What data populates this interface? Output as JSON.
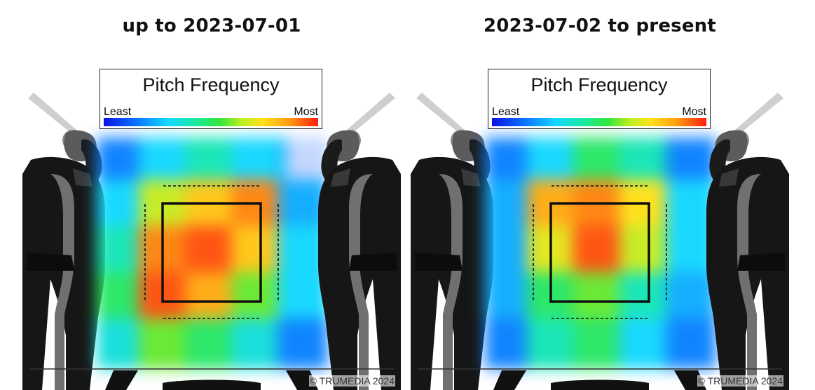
{
  "panels": [
    {
      "title": "up to 2023-07-01",
      "legend": {
        "title": "Pitch Frequency",
        "min_label": "Least",
        "max_label": "Most"
      },
      "credit": "© TRUMEDIA 2024"
    },
    {
      "title": "2023-07-02 to present",
      "legend": {
        "title": "Pitch Frequency",
        "min_label": "Least",
        "max_label": "Most"
      },
      "credit": "© TRUMEDIA 2024"
    }
  ],
  "chart_data": [
    {
      "type": "heatmap",
      "title": "up to 2023-07-01",
      "xlabel": "",
      "ylabel": "",
      "colorbar": {
        "label": "Pitch Frequency",
        "min_label": "Least",
        "max_label": "Most",
        "colors": [
          "#0a12e6",
          "#0a6cff",
          "#15d8ff",
          "#19e9a5",
          "#33e53d",
          "#b9ef25",
          "#ffe11a",
          "#ff9f12",
          "#ff1e0e"
        ]
      },
      "grid_columns": [
        "outside-left",
        "inner-left",
        "inner-center",
        "inner-right",
        "outside-right"
      ],
      "grid_rows": [
        "high",
        "upper",
        "middle",
        "lower",
        "low"
      ],
      "values": [
        [
          0.15,
          0.25,
          0.35,
          0.25,
          0.1
        ],
        [
          0.25,
          0.65,
          0.8,
          0.9,
          0.2
        ],
        [
          0.35,
          0.9,
          0.95,
          0.8,
          0.25
        ],
        [
          0.45,
          0.95,
          0.85,
          0.55,
          0.25
        ],
        [
          0.3,
          0.55,
          0.45,
          0.3,
          0.15
        ]
      ],
      "grid": false,
      "legend_position": "top"
    },
    {
      "type": "heatmap",
      "title": "2023-07-02 to present",
      "xlabel": "",
      "ylabel": "",
      "colorbar": {
        "label": "Pitch Frequency",
        "min_label": "Least",
        "max_label": "Most",
        "colors": [
          "#0a12e6",
          "#0a6cff",
          "#15d8ff",
          "#19e9a5",
          "#33e53d",
          "#b9ef25",
          "#ffe11a",
          "#ff9f12",
          "#ff1e0e"
        ]
      },
      "grid_columns": [
        "outside-left",
        "inner-left",
        "inner-center",
        "inner-right",
        "outside-right"
      ],
      "grid_rows": [
        "high",
        "upper",
        "middle",
        "lower",
        "low"
      ],
      "values": [
        [
          0.15,
          0.25,
          0.45,
          0.35,
          0.15
        ],
        [
          0.2,
          0.85,
          0.9,
          0.75,
          0.25
        ],
        [
          0.2,
          0.7,
          0.95,
          0.65,
          0.25
        ],
        [
          0.2,
          0.45,
          0.55,
          0.35,
          0.2
        ],
        [
          0.15,
          0.35,
          0.45,
          0.25,
          0.15
        ]
      ],
      "grid": false,
      "legend_position": "top"
    }
  ]
}
